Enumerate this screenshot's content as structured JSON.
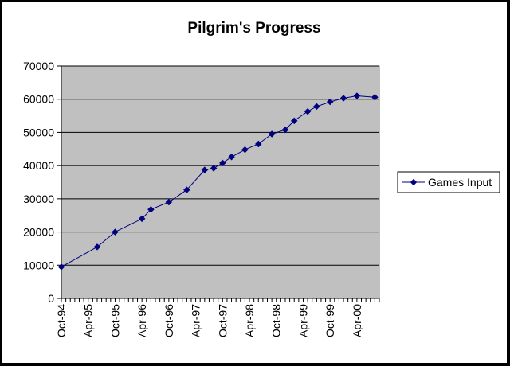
{
  "chart_data": {
    "type": "line",
    "title": "Pilgrim's Progress",
    "xlabel": "",
    "ylabel": "",
    "ylim": [
      0,
      70000
    ],
    "yticks": [
      0,
      10000,
      20000,
      30000,
      40000,
      50000,
      60000,
      70000
    ],
    "x_tick_labels": [
      "Oct-94",
      "Apr-95",
      "Oct-95",
      "Apr-96",
      "Oct-96",
      "Apr-97",
      "Oct-97",
      "Apr-98",
      "Oct-98",
      "Apr-99",
      "Oct-99",
      "Apr-00"
    ],
    "x_range_months": [
      0,
      71
    ],
    "grid": "horizontal",
    "legend_position": "right",
    "colors": {
      "plot_background": "#c0c0c0",
      "series": "#000080",
      "border": "#000000"
    },
    "series": [
      {
        "name": "Games Input",
        "x_months_since_oct94": [
          0,
          8,
          12,
          18,
          20,
          24,
          28,
          32,
          34,
          36,
          38,
          41,
          44,
          47,
          50,
          52,
          55,
          57,
          60,
          63,
          66,
          70
        ],
        "y": [
          9500,
          15500,
          20000,
          24000,
          26800,
          29000,
          32700,
          38700,
          39200,
          40800,
          42600,
          44800,
          46500,
          49500,
          50800,
          53500,
          56300,
          57800,
          59200,
          60300,
          61000,
          60600
        ]
      }
    ]
  }
}
